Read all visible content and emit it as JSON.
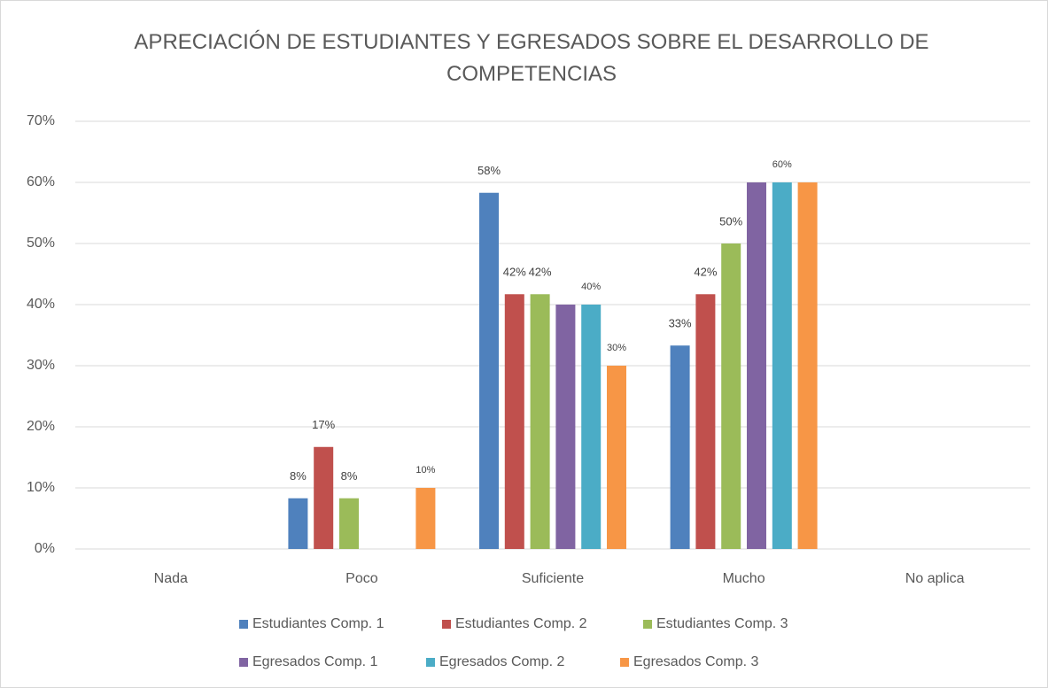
{
  "chart_data": {
    "type": "bar",
    "title": "APRECIACIÓN DE ESTUDIANTES Y EGRESADOS SOBRE EL DESARROLLO DE COMPETENCIAS",
    "categories": [
      "Nada",
      "Poco",
      "Suficiente",
      "Mucho",
      "No aplica"
    ],
    "series": [
      {
        "name": "Estudiantes Comp. 1",
        "color": "#4f81bd",
        "values": [
          null,
          8.3,
          58.3,
          33.3,
          null
        ],
        "value_labels": [
          null,
          "8%",
          "58%",
          "33%",
          null
        ]
      },
      {
        "name": "Estudiantes Comp. 2",
        "color": "#c0504d",
        "values": [
          null,
          16.7,
          41.7,
          41.7,
          null
        ],
        "value_labels": [
          null,
          "17%",
          "42%",
          "42%",
          null
        ]
      },
      {
        "name": "Estudiantes Comp. 3",
        "color": "#9bbb59",
        "values": [
          null,
          8.3,
          41.7,
          50,
          null
        ],
        "value_labels": [
          null,
          "8%",
          "42%",
          "50%",
          null
        ]
      },
      {
        "name": "Egresados Comp. 1",
        "color": "#8064a2",
        "values": [
          null,
          null,
          40,
          60,
          null
        ]
      },
      {
        "name": "Egresados Comp. 2",
        "color": "#4bacc6",
        "values": [
          null,
          null,
          40,
          60,
          null
        ],
        "value_labels": [
          null,
          null,
          "40%",
          "60%",
          null
        ]
      },
      {
        "name": "Egresados Comp. 3",
        "color": "#f79646",
        "values": [
          null,
          10,
          30,
          60,
          null
        ],
        "value_labels": [
          null,
          "10%",
          "30%",
          null,
          null
        ]
      }
    ],
    "ylim": [
      0,
      70
    ],
    "yticks": [
      {
        "value": 0,
        "label": "0%"
      },
      {
        "value": 10,
        "label": "10%"
      },
      {
        "value": 20,
        "label": "20%"
      },
      {
        "value": 30,
        "label": "30%"
      },
      {
        "value": 40,
        "label": "40%"
      },
      {
        "value": 50,
        "label": "50%"
      },
      {
        "value": 60,
        "label": "60%"
      },
      {
        "value": 70,
        "label": "70%"
      }
    ],
    "grid": true,
    "legend": "bottom"
  }
}
